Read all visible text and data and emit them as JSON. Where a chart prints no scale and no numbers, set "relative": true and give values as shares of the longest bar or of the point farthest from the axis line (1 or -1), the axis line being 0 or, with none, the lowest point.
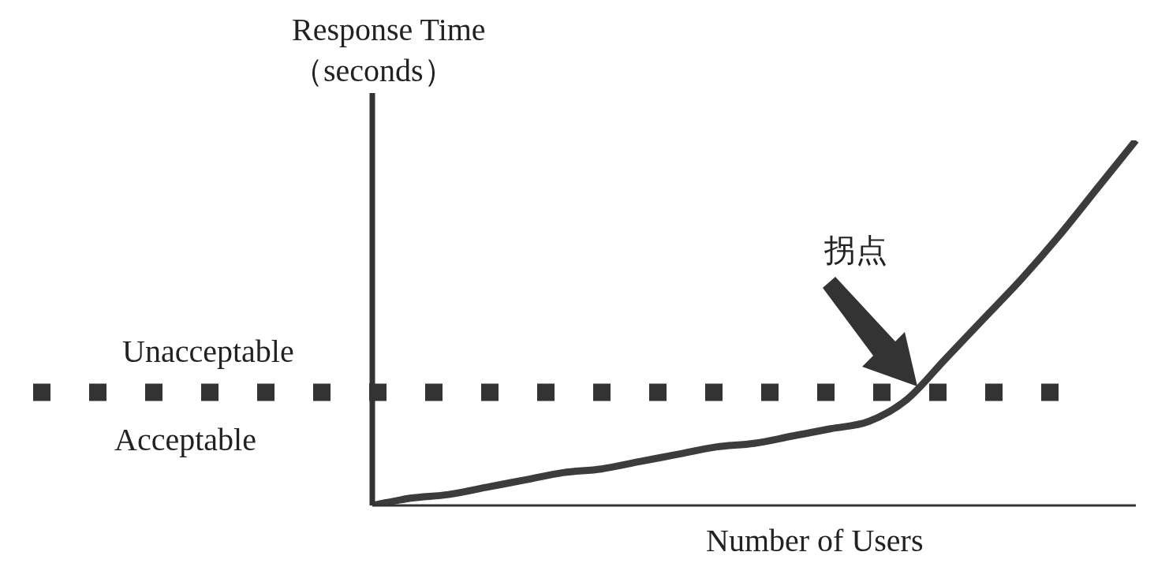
{
  "chart_data": {
    "type": "line",
    "xlabel": "Number of Users",
    "ylabel": "Response Time（seconds）",
    "annotations": [
      "Unacceptable",
      "Acceptable",
      "拐点"
    ],
    "relative": true,
    "grid": false,
    "categories": [
      null,
      null,
      null,
      null,
      null,
      null,
      null,
      null,
      null,
      null,
      null,
      null,
      null,
      null,
      null,
      null,
      null,
      null,
      null,
      null,
      null
    ],
    "series": [
      {
        "color": "#3c3c3c",
        "values": [
          0,
          0.02,
          0.03,
          0.05,
          0.07,
          0.09,
          0.1,
          0.12,
          0.14,
          0.16,
          0.17,
          0.19,
          0.21,
          0.23,
          0.29,
          0.4,
          0.51,
          0.62,
          0.74,
          0.87,
          1
        ]
      }
    ],
    "ref_lines": [
      {
        "axis": "y",
        "value": 0.31,
        "color": "#333333",
        "line_style": "dotted"
      }
    ]
  }
}
